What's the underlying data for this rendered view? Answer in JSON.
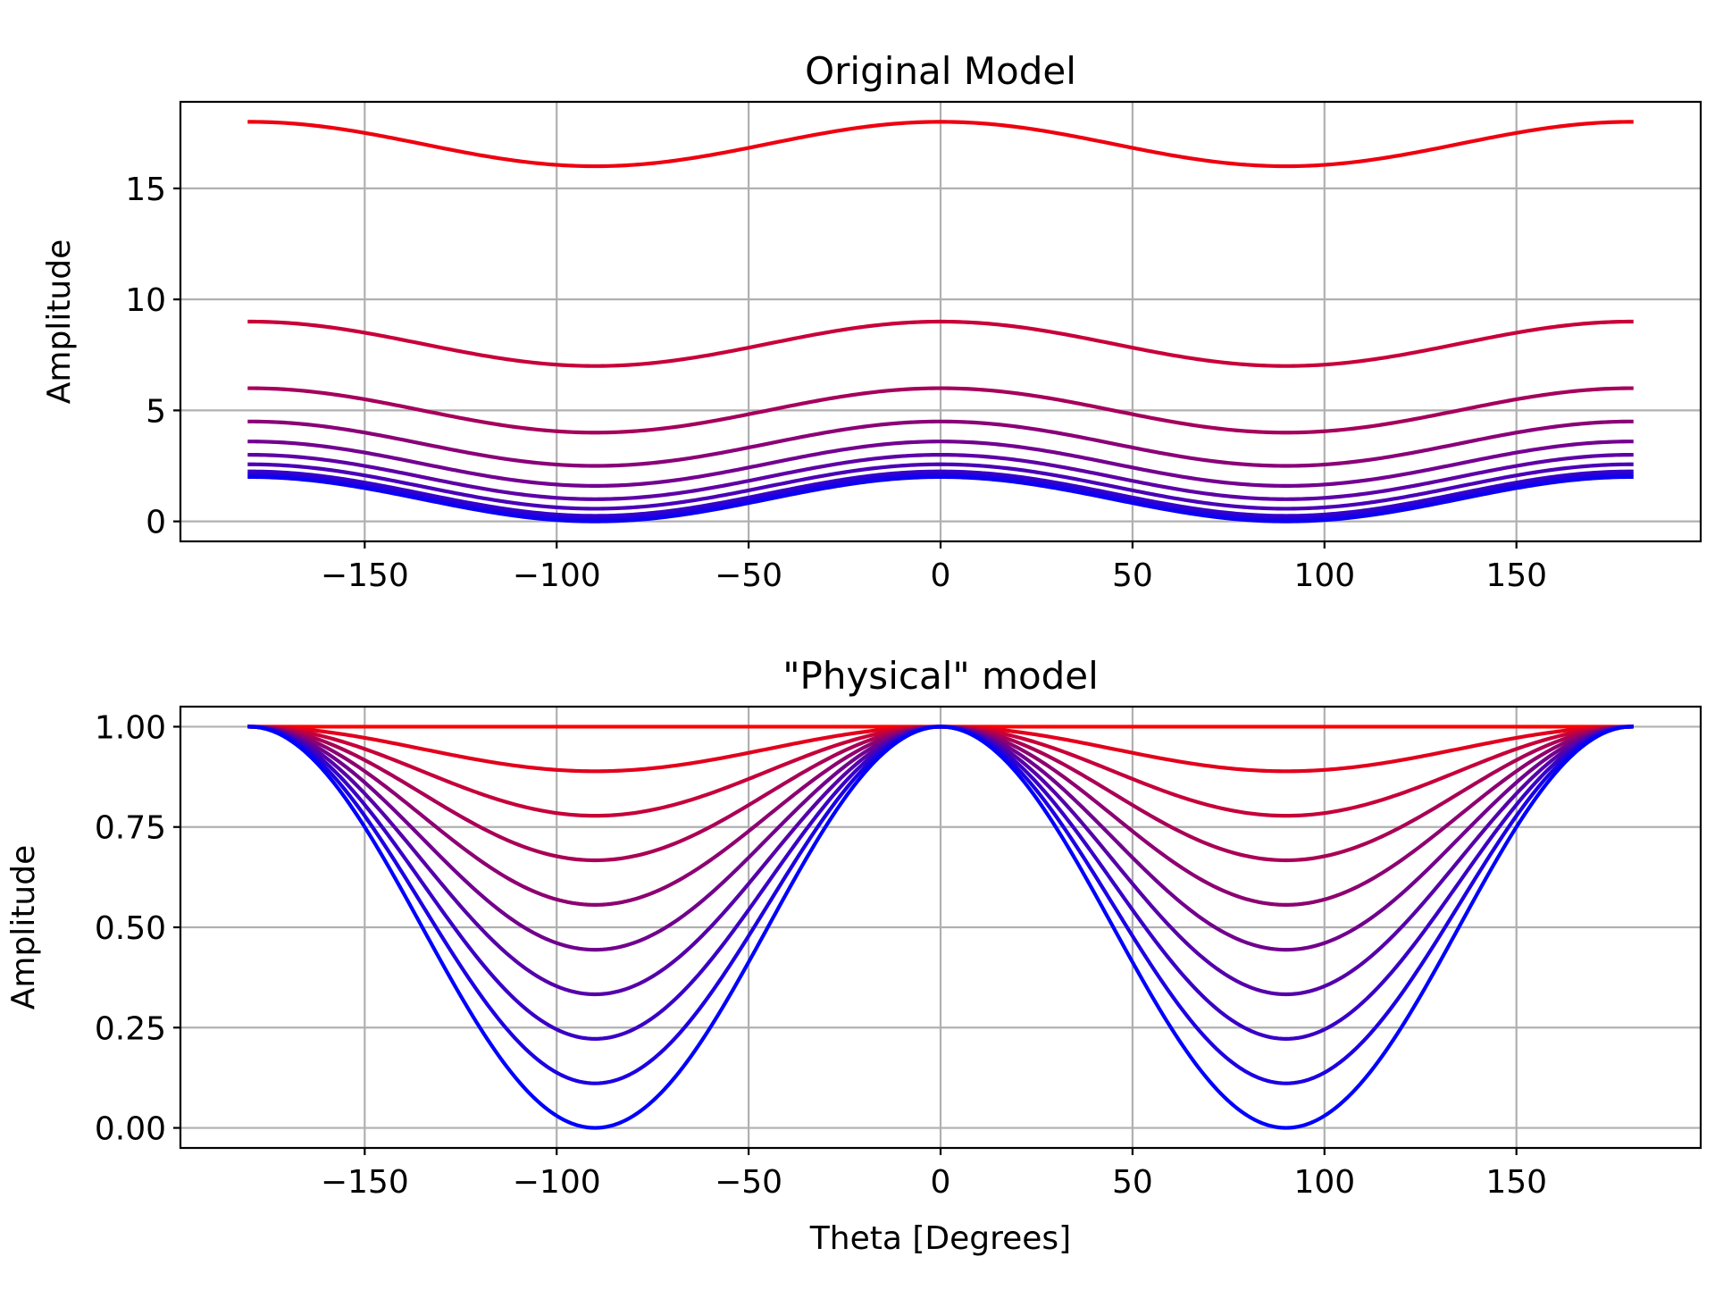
{
  "chart_data": [
    {
      "type": "line",
      "title": "Original Model",
      "xlabel": "",
      "ylabel": "Amplitude",
      "xlim": [
        -198,
        198
      ],
      "ylim": [
        -0.9,
        18.9
      ],
      "xticks": [
        -150,
        -100,
        -50,
        0,
        50,
        100,
        150
      ],
      "xtick_labels": [
        "−150",
        "−100",
        "−50",
        "0",
        "50",
        "100",
        "150"
      ],
      "yticks": [
        0,
        5,
        10,
        15
      ],
      "ytick_labels": [
        "0",
        "5",
        "10",
        "15"
      ],
      "grid": true,
      "model": "offset + cos(2·theta)",
      "x_range": [
        -180,
        180
      ],
      "series": [
        {
          "offset": 17.0,
          "color": "#ee0010"
        },
        {
          "offset": 8.0,
          "color": "#c8003a"
        },
        {
          "offset": 5.0,
          "color": "#a5005c"
        },
        {
          "offset": 3.5,
          "color": "#8a0077"
        },
        {
          "offset": 2.6,
          "color": "#730090"
        },
        {
          "offset": 2.0,
          "color": "#5d00a6"
        },
        {
          "offset": 1.571,
          "color": "#4a00b7"
        },
        {
          "offset": 1.25,
          "color": "#3600cb"
        },
        {
          "offset": 1.111,
          "color": "#2200de"
        },
        {
          "offset": 1.0,
          "color": "#0c00f4"
        }
      ]
    },
    {
      "type": "line",
      "title": "\"Physical\" model",
      "xlabel": "Theta [Degrees]",
      "ylabel": "Amplitude",
      "xlim": [
        -198,
        198
      ],
      "ylim": [
        -0.05,
        1.05
      ],
      "xticks": [
        -150,
        -100,
        -50,
        0,
        50,
        100,
        150
      ],
      "xtick_labels": [
        "−150",
        "−100",
        "−50",
        "0",
        "50",
        "100",
        "150"
      ],
      "yticks": [
        0,
        0.25,
        0.5,
        0.75,
        1.0
      ],
      "ytick_labels": [
        "0.00",
        "0.25",
        "0.50",
        "0.75",
        "1.00"
      ],
      "grid": true,
      "model": "1 − depth·sin²(theta)",
      "x_range": [
        -180,
        180
      ],
      "series": [
        {
          "min_value": 1.0,
          "color": "#ff0000"
        },
        {
          "min_value": 0.889,
          "color": "#e2001c"
        },
        {
          "min_value": 0.778,
          "color": "#c60039"
        },
        {
          "min_value": 0.667,
          "color": "#aa0055"
        },
        {
          "min_value": 0.556,
          "color": "#8d0071"
        },
        {
          "min_value": 0.444,
          "color": "#71008d"
        },
        {
          "min_value": 0.333,
          "color": "#5500aa"
        },
        {
          "min_value": 0.222,
          "color": "#3900c6"
        },
        {
          "min_value": 0.111,
          "color": "#1c00e2"
        },
        {
          "min_value": 0.0,
          "color": "#0000ff"
        }
      ]
    }
  ]
}
